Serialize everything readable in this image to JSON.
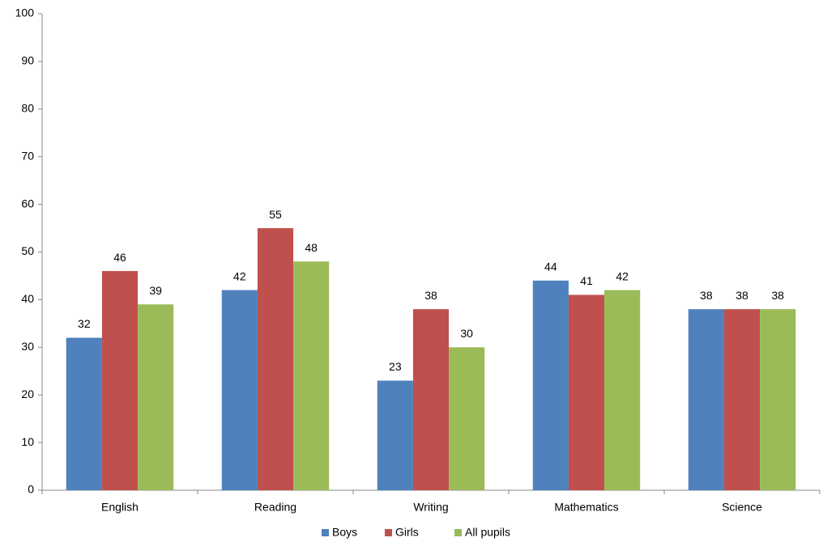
{
  "chart_data": {
    "type": "bar",
    "categories": [
      "English",
      "Reading",
      "Writing",
      "Mathematics",
      "Science"
    ],
    "series": [
      {
        "name": "Boys",
        "color": "#4f81bd",
        "values": [
          32,
          42,
          23,
          44,
          38
        ]
      },
      {
        "name": "Girls",
        "color": "#c0504d",
        "values": [
          46,
          55,
          38,
          41,
          38
        ]
      },
      {
        "name": "All pupils",
        "color": "#9bbb59",
        "values": [
          39,
          48,
          30,
          42,
          38
        ]
      }
    ],
    "ylim": [
      0,
      100
    ],
    "yticks": [
      0,
      10,
      20,
      30,
      40,
      50,
      60,
      70,
      80,
      90,
      100
    ],
    "grid": false,
    "legend": "bottom"
  }
}
